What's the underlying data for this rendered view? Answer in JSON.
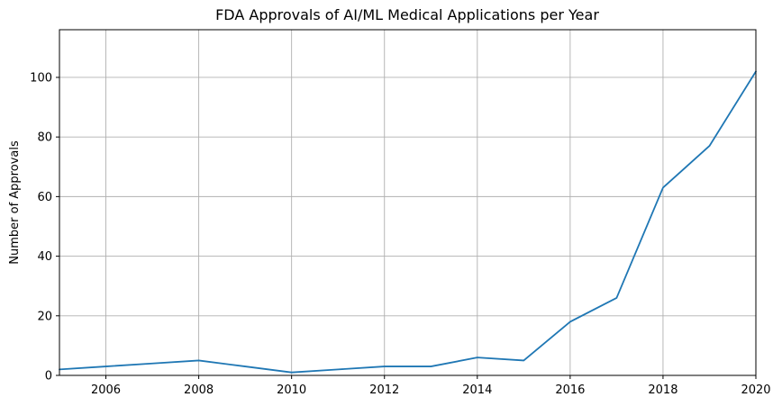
{
  "chart_data": {
    "type": "line",
    "title": "FDA Approvals of AI/ML Medical Applications per Year",
    "xlabel": "",
    "ylabel": "Number of Approvals",
    "xlim": [
      2005,
      2020
    ],
    "ylim": [
      0,
      116
    ],
    "x_ticks": [
      2006,
      2008,
      2010,
      2012,
      2014,
      2016,
      2018,
      2020
    ],
    "y_ticks": [
      0,
      20,
      40,
      60,
      80,
      100
    ],
    "grid": true,
    "series": [
      {
        "color": "#1f77b4",
        "x": [
          2005,
          2006,
          2007,
          2008,
          2009,
          2010,
          2011,
          2012,
          2013,
          2014,
          2015,
          2016,
          2017,
          2018,
          2019,
          2020
        ],
        "values": [
          2,
          3,
          4,
          5,
          3,
          1,
          2,
          3,
          3,
          6,
          5,
          18,
          26,
          63,
          77,
          102
        ]
      }
    ]
  }
}
